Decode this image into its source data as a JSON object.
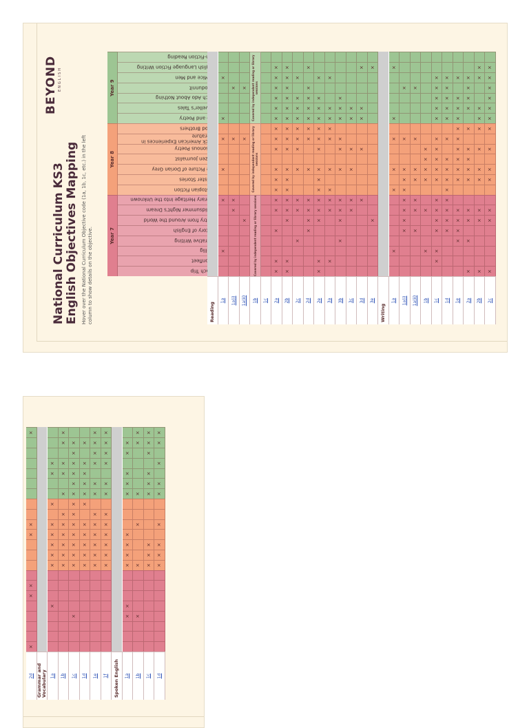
{
  "header": {
    "logo": "BEYOND",
    "logo_sub": "ENGLISH",
    "title_line1": "National Curriculum KS3",
    "title_line2": "English Objectives Mapping",
    "subtitle": "Hover over the National Curriculum Objective code (1a, 1b, 1c, etc.) in the left column to show details on the objective."
  },
  "mark_symbol": "×",
  "years": [
    {
      "label": "Year 7",
      "note": "Covered by independent reading or library sessions",
      "units": [
        "Coach Trip",
        "Moonfleet",
        "Skellig",
        "Narrative Writing",
        "History of English",
        "Poetry from Around the World",
        "A Midsummer Night's Dream",
        "Literary Heritage Into the Unknown"
      ]
    },
    {
      "label": "Year 8",
      "note": "Covered by independent reading or library sessions",
      "units": [
        "Dystopian Fiction",
        "Sinister Stories",
        "The Picture of Dorian Grey",
        "Citizen Journalist",
        "Poisonous Poetry",
        "Black American Experiences in Literature",
        "Blood Brothers"
      ]
    },
    {
      "label": "Year 9",
      "note": "Covered by independent reading or library sessions",
      "units": [
        "Pop and Poetry",
        "Traveller's Tales",
        "Much Ado About Nothing",
        "Whodunnit",
        "Of Mice and Men",
        "English Language Fiction Writing",
        "Non-Fiction Reading"
      ]
    }
  ],
  "page1_rows": [
    {
      "section": "Reading"
    },
    {
      "code": "1a",
      "marks": [
        2,
        7,
        10,
        13,
        15,
        19
      ]
    },
    {
      "code": "1a(i)",
      "marks": [
        6,
        7,
        13,
        18
      ]
    },
    {
      "code": "1a(ii)",
      "marks": [
        5,
        13,
        18
      ]
    },
    {
      "code": "1b",
      "notes": true
    },
    {
      "code": "1c",
      "marks": []
    },
    {
      "code": "2a",
      "marks": [
        0,
        1,
        4,
        6,
        7,
        8,
        9,
        10,
        12,
        13,
        14,
        15,
        16,
        17,
        18,
        19,
        20
      ]
    },
    {
      "code": "2b",
      "marks": [
        0,
        1,
        5,
        6,
        7,
        8,
        9,
        10,
        12,
        13,
        14,
        15,
        16,
        17,
        18,
        19,
        20
      ]
    },
    {
      "code": "2c",
      "marks": [
        3,
        6,
        7,
        10,
        12,
        13,
        14,
        15,
        16,
        17,
        19
      ]
    },
    {
      "code": "2d",
      "marks": [
        4,
        5,
        6,
        7,
        10,
        13,
        14,
        15,
        16,
        17,
        18,
        20
      ]
    },
    {
      "code": "2e",
      "marks": [
        0,
        1,
        5,
        6,
        7,
        8,
        9,
        10,
        12,
        13,
        14,
        15,
        16,
        17,
        19
      ]
    },
    {
      "code": "3a",
      "marks": [
        1,
        6,
        7,
        8,
        10,
        13,
        14,
        15,
        16,
        19
      ]
    },
    {
      "code": "3b",
      "marks": [
        3,
        5,
        6,
        7,
        10,
        12,
        13,
        15,
        16,
        17
      ]
    },
    {
      "code": "3c",
      "marks": [
        6,
        7,
        10,
        12,
        15,
        16
      ]
    },
    {
      "code": "3d",
      "marks": [
        7,
        12,
        15,
        16,
        20
      ]
    },
    {
      "code": "3e",
      "marks": [
        5,
        20
      ]
    },
    {
      "section": "Writing"
    },
    {
      "code": "1a",
      "marks": [
        2,
        8,
        10,
        13,
        15,
        20
      ]
    },
    {
      "code": "1a(i)",
      "marks": [
        4,
        5,
        6,
        7,
        8,
        9,
        10,
        13,
        18
      ]
    },
    {
      "code": "1a(ii)",
      "marks": [
        4,
        6,
        7,
        9,
        10,
        13,
        18
      ]
    },
    {
      "code": "1b",
      "marks": [
        2,
        6,
        9,
        10,
        11,
        12
      ]
    },
    {
      "code": "1c",
      "marks": [
        1,
        2,
        4,
        5,
        6,
        7,
        9,
        10,
        11,
        12,
        13,
        15,
        16,
        17,
        18,
        19
      ]
    },
    {
      "code": "1d",
      "marks": [
        4,
        5,
        6,
        7,
        8,
        9,
        10,
        11,
        13,
        15,
        16,
        17,
        18,
        19
      ]
    },
    {
      "code": "1e",
      "marks": [
        3,
        4,
        5,
        6,
        9,
        10,
        11,
        12,
        13,
        14,
        15,
        16,
        17,
        19
      ]
    },
    {
      "code": "2a",
      "marks": [
        0,
        3,
        5,
        6,
        9,
        10,
        11,
        12,
        14,
        16,
        17,
        18,
        19
      ]
    },
    {
      "code": "2b",
      "marks": [
        0,
        5,
        6,
        9,
        10,
        12,
        14,
        15,
        16,
        19,
        20
      ]
    },
    {
      "code": "2c",
      "marks": [
        0,
        5,
        6,
        9,
        10,
        12,
        14,
        15,
        16,
        17,
        18,
        19,
        20
      ]
    }
  ],
  "page2_rows": [
    {
      "code": "2d",
      "marks": [
        0,
        5,
        6,
        11,
        12,
        21
      ]
    },
    {
      "section": "Grammar and Vocabulary"
    },
    {
      "code": "1a",
      "marks": [
        4,
        8,
        9,
        10,
        11,
        12,
        14,
        17,
        18
      ]
    },
    {
      "code": "1b",
      "marks": [
        8,
        9,
        10,
        11,
        12,
        13,
        15,
        17,
        18,
        20,
        21
      ]
    },
    {
      "code": "1c",
      "marks": [
        3,
        8,
        9,
        10,
        11,
        12,
        13,
        14,
        15,
        16,
        17,
        18,
        19,
        20
      ]
    },
    {
      "code": "1d",
      "marks": [
        8,
        9,
        10,
        11,
        12,
        14,
        15,
        16,
        17,
        18,
        20
      ]
    },
    {
      "code": "1e",
      "marks": [
        8,
        9,
        10,
        11,
        12,
        13,
        15,
        16,
        18,
        19,
        20,
        21
      ]
    },
    {
      "code": "1f",
      "marks": [
        8,
        9,
        10,
        11,
        12,
        13,
        15,
        16,
        18,
        19,
        20,
        21
      ]
    },
    {
      "section": "Spoken English"
    },
    {
      "code": "1a",
      "marks": [
        3,
        4,
        8,
        9,
        10,
        11,
        15,
        16,
        17,
        19,
        20
      ]
    },
    {
      "code": "1b",
      "marks": [
        3,
        8,
        12,
        15,
        20,
        21
      ]
    },
    {
      "code": "1c",
      "marks": [
        8,
        9,
        10,
        15,
        16,
        17,
        19,
        20,
        21
      ]
    },
    {
      "code": "1d",
      "marks": [
        8,
        9,
        10,
        12,
        15,
        16,
        18,
        20,
        21
      ]
    }
  ]
}
